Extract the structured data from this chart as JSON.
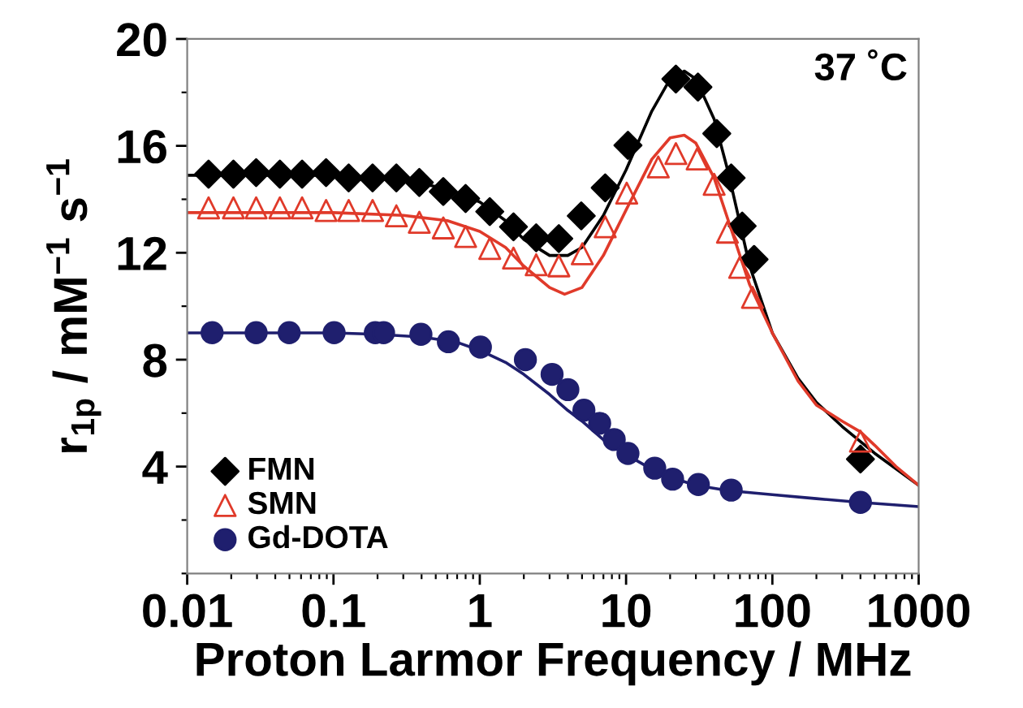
{
  "chart_data": {
    "type": "scatter",
    "xlabel": "Proton Larmor Frequency / MHz",
    "ylabel": "r$_{1p}$ / mM$^{−1}$ s$^{−1}$",
    "log": "x",
    "xlim": [
      0.01,
      1000
    ],
    "xticks": [
      0.01,
      0.1,
      1,
      10,
      100,
      1000
    ],
    "ylim": [
      0,
      20
    ],
    "yticks": [
      4,
      8,
      12,
      16,
      20
    ],
    "grid": false,
    "legend": "bottom left",
    "annotations": [
      "37 ˚C"
    ],
    "series": [
      {
        "name": "FMN",
        "marker": "diamond",
        "color": "#000000",
        "x": [
          0.014,
          0.0207,
          0.0296,
          0.043,
          0.061,
          0.089,
          0.127,
          0.185,
          0.269,
          0.386,
          0.563,
          0.8,
          1.17,
          1.7,
          2.43,
          3.47,
          4.94,
          7.2,
          10.3,
          21.9,
          31,
          41.7,
          52.3,
          62.2,
          75,
          400
        ],
        "values": [
          14.94,
          14.94,
          15.0,
          14.94,
          14.94,
          15.0,
          14.8,
          14.8,
          14.8,
          14.63,
          14.29,
          14.03,
          13.54,
          12.97,
          12.56,
          12.53,
          13.38,
          14.43,
          16.02,
          18.5,
          18.2,
          16.46,
          14.8,
          13.0,
          11.75,
          4.28
        ]
      },
      {
        "name": "SMN",
        "marker": "triangle",
        "color": "#e03a2a",
        "x": [
          0.014,
          0.0207,
          0.0296,
          0.043,
          0.061,
          0.089,
          0.127,
          0.185,
          0.269,
          0.386,
          0.563,
          0.8,
          1.17,
          1.7,
          2.43,
          3.47,
          5.02,
          7.2,
          10.1,
          16.6,
          21.9,
          30.6,
          40,
          49.3,
          59.8,
          73.1,
          400
        ],
        "values": [
          13.68,
          13.68,
          13.68,
          13.68,
          13.68,
          13.58,
          13.58,
          13.58,
          13.38,
          13.14,
          12.93,
          12.61,
          12.16,
          11.8,
          11.55,
          11.51,
          11.96,
          12.97,
          14.23,
          15.21,
          15.71,
          15.51,
          14.56,
          12.77,
          11.45,
          10.33,
          4.95
        ]
      },
      {
        "name": "Gd-DOTA",
        "marker": "circle",
        "color": "#1f1f6e",
        "x": [
          0.0148,
          0.0296,
          0.0498,
          0.101,
          0.193,
          0.22,
          0.396,
          0.61,
          1.01,
          2.05,
          3.12,
          4.0,
          5.15,
          6.6,
          8.3,
          10.3,
          15.7,
          20.8,
          31.2,
          52.3,
          400
        ],
        "values": [
          9.01,
          9.01,
          9.01,
          9.01,
          9.01,
          9.01,
          8.95,
          8.67,
          8.47,
          8.0,
          7.45,
          6.88,
          6.11,
          5.62,
          5.01,
          4.49,
          3.94,
          3.53,
          3.33,
          3.12,
          2.66
        ]
      },
      {
        "type": "line",
        "marker": "none",
        "color": "#000000",
        "x": [
          0.01,
          0.1,
          0.3,
          0.6,
          1,
          1.5,
          2,
          3,
          4,
          5,
          7,
          10,
          15,
          20,
          25,
          30,
          40,
          50,
          70,
          100,
          150,
          200,
          300,
          500,
          1000
        ],
        "values": [
          14.9,
          14.9,
          14.7,
          14.4,
          13.9,
          13.2,
          12.5,
          11.9,
          11.9,
          12.2,
          13.4,
          15.1,
          17.3,
          18.5,
          18.8,
          18.5,
          17.0,
          15.0,
          11.5,
          9.0,
          7.3,
          6.4,
          5.5,
          4.5,
          3.3
        ]
      },
      {
        "type": "line",
        "marker": "none",
        "color": "#e03a2a",
        "x": [
          0.01,
          0.1,
          0.3,
          0.6,
          1,
          1.5,
          2,
          3,
          3.8,
          5,
          7,
          10,
          15,
          20,
          25,
          30,
          40,
          50,
          70,
          100,
          150,
          200,
          300,
          400,
          500,
          700,
          1000
        ],
        "values": [
          13.5,
          13.5,
          13.4,
          13.2,
          12.8,
          12.2,
          11.5,
          10.7,
          10.45,
          10.7,
          11.9,
          13.6,
          15.5,
          16.3,
          16.4,
          16.1,
          14.8,
          13.2,
          10.8,
          9.0,
          7.2,
          6.3,
          5.7,
          5.3,
          4.8,
          4.0,
          3.3
        ]
      },
      {
        "type": "line",
        "marker": "none",
        "color": "#1f1f6e",
        "x": [
          0.01,
          0.1,
          0.2,
          0.4,
          0.7,
          1,
          1.5,
          2,
          3,
          4,
          5,
          7,
          10,
          15,
          20,
          30,
          50,
          100,
          200,
          400,
          1000
        ],
        "values": [
          9.0,
          9.0,
          8.95,
          8.85,
          8.65,
          8.35,
          7.9,
          7.45,
          6.7,
          6.1,
          5.7,
          5.0,
          4.45,
          3.9,
          3.6,
          3.3,
          3.1,
          2.95,
          2.8,
          2.66,
          2.5
        ]
      }
    ]
  }
}
